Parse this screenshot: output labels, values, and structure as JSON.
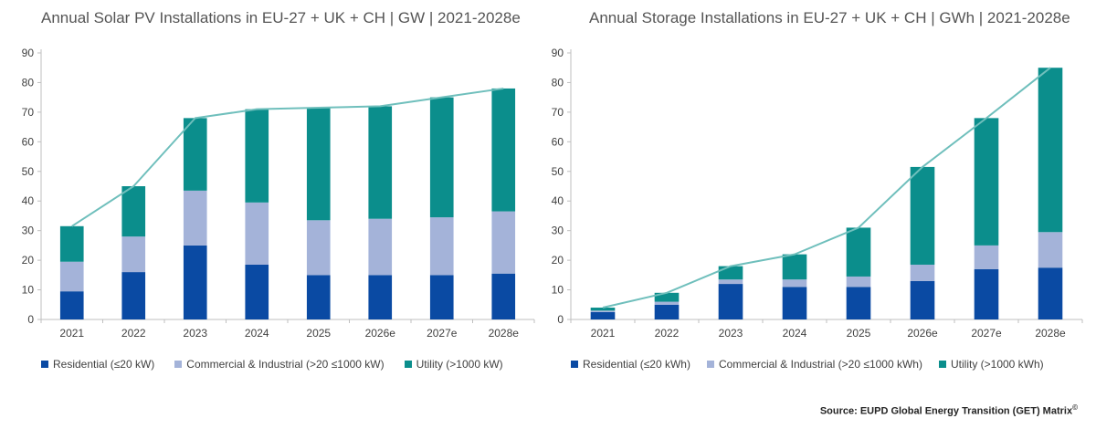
{
  "colors": {
    "residential": "#0a4aa3",
    "commercial": "#a4b3d9",
    "utility": "#0b8e8c",
    "line": "#6fbfbc",
    "axis": "#bfbfbf"
  },
  "source": {
    "text": "Source: EUPD Global Energy Transition (GET) Matrix",
    "mark": "©"
  },
  "chart_data": [
    {
      "type": "bar",
      "stacked": true,
      "title": "Annual Solar PV Installations in EU-27 + UK + CH | GW | 2021-2028e",
      "categories": [
        "2021",
        "2022",
        "2023",
        "2024",
        "2025",
        "2026e",
        "2027e",
        "2028e"
      ],
      "ylim": [
        0,
        90
      ],
      "yticks": [
        0,
        10,
        20,
        30,
        40,
        50,
        60,
        70,
        80,
        90
      ],
      "series": [
        {
          "name": "Residential (≤20 kW)",
          "key": "residential",
          "values": [
            9.5,
            16,
            25,
            18.5,
            15,
            15,
            15,
            15.5
          ]
        },
        {
          "name": "Commercial & Industrial (>20 ≤1000 kW)",
          "key": "commercial",
          "values": [
            10,
            12,
            18.5,
            21,
            18.5,
            19,
            19.5,
            21
          ]
        },
        {
          "name": "Utility (>1000 kW)",
          "key": "utility",
          "values": [
            12,
            17,
            24.5,
            31.5,
            38,
            38,
            40.5,
            41.5
          ]
        }
      ],
      "totals": [
        31.5,
        45,
        68,
        71,
        71.5,
        72,
        75,
        78
      ],
      "grid": false,
      "legend": "bottom"
    },
    {
      "type": "bar",
      "stacked": true,
      "title": "Annual Storage Installations in EU-27 + UK + CH | GWh | 2021-2028e",
      "categories": [
        "2021",
        "2022",
        "2023",
        "2024",
        "2025",
        "2026e",
        "2027e",
        "2028e"
      ],
      "ylim": [
        0,
        90
      ],
      "yticks": [
        0,
        10,
        20,
        30,
        40,
        50,
        60,
        70,
        80,
        90
      ],
      "series": [
        {
          "name": "Residential (≤20 kWh)",
          "key": "residential",
          "values": [
            2.5,
            5,
            12,
            11,
            11,
            13,
            17,
            17.5
          ]
        },
        {
          "name": "Commercial & Industrial (>20 ≤1000 kWh)",
          "key": "commercial",
          "values": [
            0.5,
            1,
            1.5,
            2.5,
            3.5,
            5.5,
            8,
            12
          ]
        },
        {
          "name": "Utility (>1000 kWh)",
          "key": "utility",
          "values": [
            1,
            3,
            4.5,
            8.5,
            16.5,
            33,
            43,
            55.5
          ]
        }
      ],
      "totals": [
        4,
        9,
        18,
        22,
        31,
        51.5,
        68,
        85
      ],
      "grid": false,
      "legend": "bottom"
    }
  ]
}
